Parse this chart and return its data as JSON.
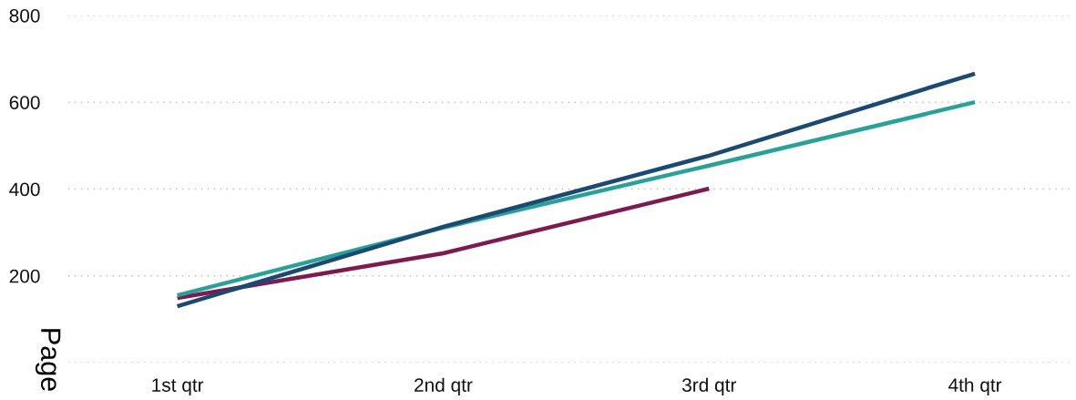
{
  "chart_data": {
    "type": "line",
    "ylabel": "Page",
    "categories": [
      "1st qtr",
      "2nd qtr",
      "3rd qtr",
      "4th qtr"
    ],
    "series": [
      {
        "color": "#7d1a4f",
        "values": [
          149,
          252,
          401,
          null
        ]
      },
      {
        "color": "#2aa198",
        "values": [
          155,
          311,
          454,
          600
        ]
      },
      {
        "color": "#1a4a72",
        "values": [
          130,
          313,
          477,
          666
        ]
      }
    ],
    "ylim": [
      0,
      800
    ],
    "yticks": [
      {
        "value": 0,
        "label": null
      },
      200,
      400,
      600,
      800
    ],
    "grid": "y",
    "line_style": "solid",
    "marker": "none",
    "legend": false
  }
}
